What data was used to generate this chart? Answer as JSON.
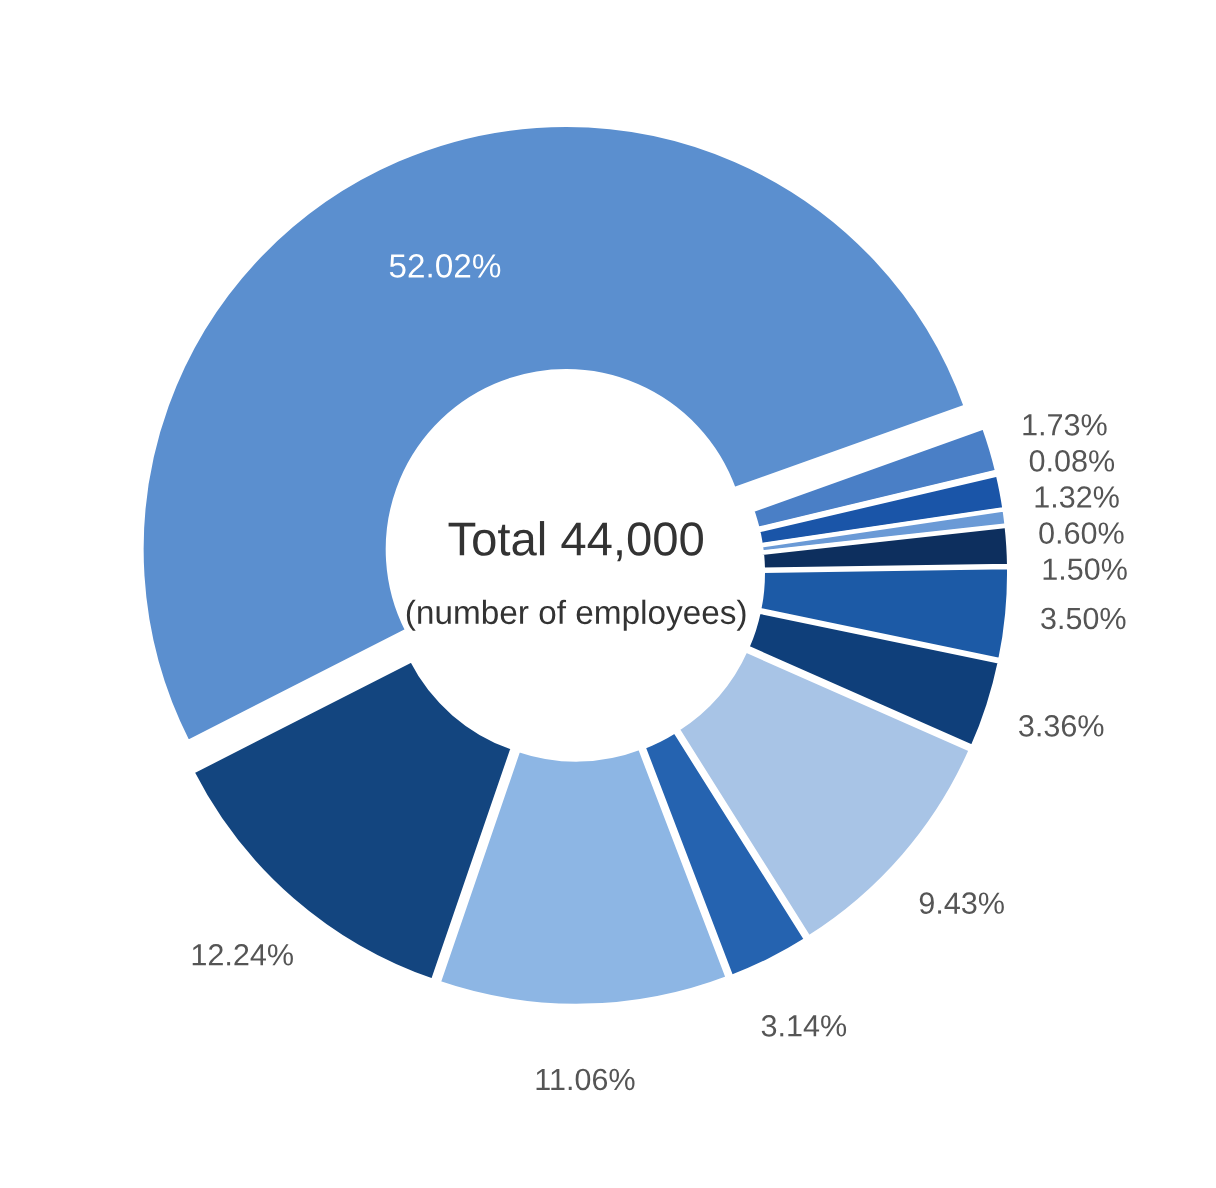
{
  "chart_data": {
    "type": "donut",
    "categories": [
      null,
      null,
      null,
      null,
      null,
      null,
      null,
      null,
      null,
      null,
      null,
      null
    ],
    "values": [
      52.02,
      1.73,
      0.08,
      1.32,
      0.6,
      1.5,
      3.5,
      3.36,
      9.43,
      3.14,
      11.06,
      12.24
    ],
    "value_labels": [
      "52.02%",
      "1.73%",
      "0.08%",
      "1.32%",
      "0.60%",
      "1.50%",
      "3.50%",
      "3.36%",
      "9.43%",
      "3.14%",
      "11.06%",
      "12.24%"
    ],
    "colors": [
      "#5b8fcf",
      "#4a7fc6",
      "#2a5faa",
      "#1a55a8",
      "#6a9ad6",
      "#0d2f5e",
      "#1c5aa6",
      "#0f3f7a",
      "#a8c4e6",
      "#2563b0",
      "#8db6e4",
      "#13457f"
    ],
    "annotations": [
      "Total 44,000",
      "(number of employees)"
    ],
    "legend": false
  }
}
